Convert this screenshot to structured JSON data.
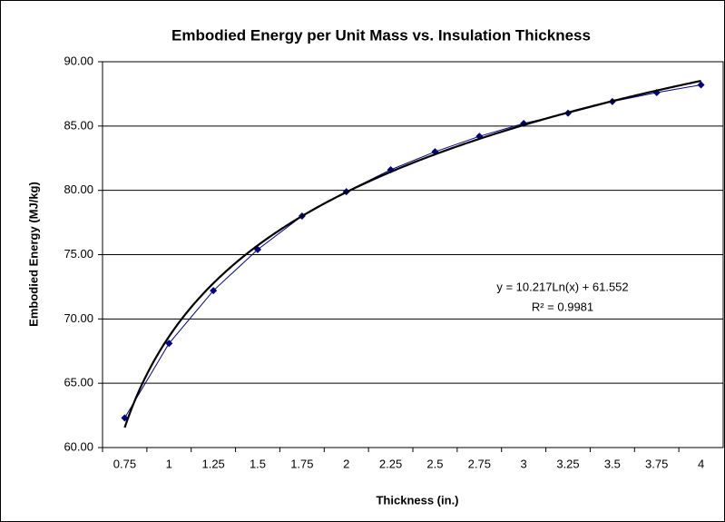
{
  "chart_data": {
    "type": "line",
    "title": "Embodied Energy per Unit Mass vs. Insulation Thickness",
    "x_label": "Thickness (in.)",
    "y_label": "Embodied Energy (MJ/kg)",
    "categories": [
      "0.75",
      "1",
      "1.25",
      "1.5",
      "1.75",
      "2",
      "2.25",
      "2.5",
      "2.75",
      "3",
      "3.25",
      "3.5",
      "3.75",
      "4"
    ],
    "series": [
      {
        "name": "Embodied Energy",
        "color": "#000080",
        "values": [
          62.3,
          68.1,
          72.2,
          75.4,
          78.0,
          79.9,
          81.6,
          83.0,
          84.2,
          85.2,
          86.0,
          86.9,
          87.6,
          88.2
        ]
      }
    ],
    "trendline": {
      "type": "log",
      "a": 10.217,
      "b": 61.552,
      "color": "#000000",
      "equation": "y = 10.217Ln(x) + 61.552",
      "r_squared": "R² = 0.9981"
    },
    "ylim": [
      60,
      90
    ],
    "yticks": [
      {
        "value": 60,
        "label": "60.00"
      },
      {
        "value": 65,
        "label": "65.00"
      },
      {
        "value": 70,
        "label": "70.00"
      },
      {
        "value": 75,
        "label": "75.00"
      },
      {
        "value": 80,
        "label": "80.00"
      },
      {
        "value": 85,
        "label": "85.00"
      },
      {
        "value": 90,
        "label": "90.00"
      }
    ],
    "grid": true
  }
}
